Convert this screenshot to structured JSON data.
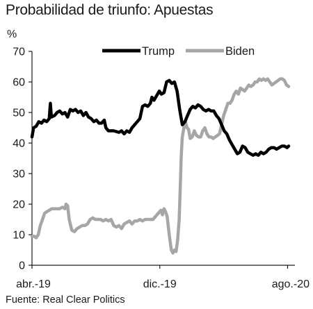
{
  "chart_data": {
    "type": "line",
    "title": "Probabilidad de triunfo: Apuestas",
    "ylabel": "%",
    "source": "Fuente: Real Clear Politics",
    "x_range": [
      "2019-04-01",
      "2020-08-15"
    ],
    "x_ticks": [
      {
        "date": "2019-04-01",
        "label": "abr.-19"
      },
      {
        "date": "2019-12-01",
        "label": "dic.-19"
      },
      {
        "date": "2020-08-01",
        "label": "ago.-20"
      }
    ],
    "ylim": [
      0,
      70
    ],
    "yticks": [
      0,
      10,
      20,
      30,
      40,
      50,
      60,
      70
    ],
    "grid": false,
    "legend": "top-right",
    "series": [
      {
        "name": "Trump",
        "color": "#000000",
        "points": [
          [
            "2019-04-01",
            42
          ],
          [
            "2019-04-04",
            45
          ],
          [
            "2019-04-09",
            45.5
          ],
          [
            "2019-04-14",
            47
          ],
          [
            "2019-04-19",
            46.5
          ],
          [
            "2019-04-24",
            47.5
          ],
          [
            "2019-04-29",
            47
          ],
          [
            "2019-05-04",
            48
          ],
          [
            "2019-05-06",
            53
          ],
          [
            "2019-05-08",
            48.5
          ],
          [
            "2019-05-14",
            49
          ],
          [
            "2019-05-19",
            50
          ],
          [
            "2019-05-24",
            50.5
          ],
          [
            "2019-05-29",
            49.5
          ],
          [
            "2019-06-03",
            50
          ],
          [
            "2019-06-08",
            48.5
          ],
          [
            "2019-06-13",
            51
          ],
          [
            "2019-06-18",
            50.5
          ],
          [
            "2019-06-23",
            51
          ],
          [
            "2019-06-28",
            50
          ],
          [
            "2019-07-03",
            50.5
          ],
          [
            "2019-07-08",
            49
          ],
          [
            "2019-07-13",
            50
          ],
          [
            "2019-07-18",
            48.5
          ],
          [
            "2019-07-23",
            48
          ],
          [
            "2019-07-28",
            47
          ],
          [
            "2019-08-02",
            47.5
          ],
          [
            "2019-08-07",
            46.5
          ],
          [
            "2019-08-12",
            46.5
          ],
          [
            "2019-08-17",
            47.5
          ],
          [
            "2019-08-20",
            45
          ],
          [
            "2019-08-25",
            44
          ],
          [
            "2019-09-04",
            44
          ],
          [
            "2019-09-14",
            43.5
          ],
          [
            "2019-09-19",
            44
          ],
          [
            "2019-09-24",
            43
          ],
          [
            "2019-09-29",
            44
          ],
          [
            "2019-10-04",
            43.5
          ],
          [
            "2019-10-09",
            45
          ],
          [
            "2019-10-14",
            46
          ],
          [
            "2019-10-19",
            47
          ],
          [
            "2019-10-24",
            48
          ],
          [
            "2019-10-29",
            52
          ],
          [
            "2019-11-03",
            52.5
          ],
          [
            "2019-11-08",
            52
          ],
          [
            "2019-11-13",
            53
          ],
          [
            "2019-11-16",
            55
          ],
          [
            "2019-11-20",
            54
          ],
          [
            "2019-11-25",
            55.5
          ],
          [
            "2019-11-30",
            57
          ],
          [
            "2019-12-04",
            56
          ],
          [
            "2019-12-09",
            56.5
          ],
          [
            "2019-12-14",
            60
          ],
          [
            "2019-12-19",
            60.5
          ],
          [
            "2019-12-24",
            59.5
          ],
          [
            "2019-12-29",
            60
          ],
          [
            "2020-01-03",
            57
          ],
          [
            "2020-01-08",
            51
          ],
          [
            "2020-01-13",
            46
          ],
          [
            "2020-01-18",
            47
          ],
          [
            "2020-01-23",
            49
          ],
          [
            "2020-01-28",
            51
          ],
          [
            "2020-02-02",
            52
          ],
          [
            "2020-02-07",
            51.5
          ],
          [
            "2020-02-12",
            52.5
          ],
          [
            "2020-02-17",
            52
          ],
          [
            "2020-02-22",
            51
          ],
          [
            "2020-02-27",
            50.5
          ],
          [
            "2020-03-03",
            51
          ],
          [
            "2020-03-08",
            50.5
          ],
          [
            "2020-03-13",
            50.5
          ],
          [
            "2020-03-18",
            49
          ],
          [
            "2020-03-23",
            48
          ],
          [
            "2020-03-28",
            46
          ],
          [
            "2020-04-02",
            44
          ],
          [
            "2020-04-07",
            43
          ],
          [
            "2020-04-12",
            41
          ],
          [
            "2020-04-17",
            39.5
          ],
          [
            "2020-04-22",
            38
          ],
          [
            "2020-04-27",
            36.5
          ],
          [
            "2020-05-02",
            37
          ],
          [
            "2020-05-07",
            39
          ],
          [
            "2020-05-12",
            38.5
          ],
          [
            "2020-05-17",
            37
          ],
          [
            "2020-05-22",
            36.5
          ],
          [
            "2020-05-27",
            36
          ],
          [
            "2020-06-01",
            36.5
          ],
          [
            "2020-06-06",
            36
          ],
          [
            "2020-06-11",
            37
          ],
          [
            "2020-06-16",
            36.5
          ],
          [
            "2020-06-21",
            37
          ],
          [
            "2020-06-26",
            38
          ],
          [
            "2020-07-01",
            38.5
          ],
          [
            "2020-07-06",
            38.5
          ],
          [
            "2020-07-11",
            38
          ],
          [
            "2020-07-16",
            38.5
          ],
          [
            "2020-07-21",
            39
          ],
          [
            "2020-07-26",
            39
          ],
          [
            "2020-07-31",
            38.5
          ],
          [
            "2020-08-03",
            39
          ]
        ]
      },
      {
        "name": "Biden",
        "color": "#a6a6a6",
        "points": [
          [
            "2019-04-01",
            9.5
          ],
          [
            "2019-04-05",
            9.5
          ],
          [
            "2019-04-09",
            9
          ],
          [
            "2019-04-13",
            10
          ],
          [
            "2019-04-17",
            13
          ],
          [
            "2019-04-21",
            15
          ],
          [
            "2019-04-25",
            17
          ],
          [
            "2019-04-29",
            17.5
          ],
          [
            "2019-05-04",
            18
          ],
          [
            "2019-05-09",
            18.5
          ],
          [
            "2019-05-14",
            18.5
          ],
          [
            "2019-05-19",
            18.5
          ],
          [
            "2019-05-24",
            18.5
          ],
          [
            "2019-05-29",
            19
          ],
          [
            "2019-06-03",
            18.5
          ],
          [
            "2019-06-05",
            20
          ],
          [
            "2019-06-08",
            19.5
          ],
          [
            "2019-06-11",
            15
          ],
          [
            "2019-06-16",
            11.5
          ],
          [
            "2019-06-21",
            11
          ],
          [
            "2019-06-26",
            12
          ],
          [
            "2019-07-01",
            12.5
          ],
          [
            "2019-07-06",
            13
          ],
          [
            "2019-07-11",
            13
          ],
          [
            "2019-07-16",
            13.5
          ],
          [
            "2019-07-21",
            15
          ],
          [
            "2019-07-26",
            15.5
          ],
          [
            "2019-07-31",
            15
          ],
          [
            "2019-08-05",
            15
          ],
          [
            "2019-08-10",
            15
          ],
          [
            "2019-08-15",
            14.5
          ],
          [
            "2019-08-20",
            15
          ],
          [
            "2019-08-25",
            14.5
          ],
          [
            "2019-08-30",
            15
          ],
          [
            "2019-09-04",
            13
          ],
          [
            "2019-09-09",
            12.5
          ],
          [
            "2019-09-14",
            13
          ],
          [
            "2019-09-19",
            12
          ],
          [
            "2019-09-24",
            13.5
          ],
          [
            "2019-09-29",
            14
          ],
          [
            "2019-10-04",
            14.5
          ],
          [
            "2019-10-09",
            13.5
          ],
          [
            "2019-10-14",
            14.5
          ],
          [
            "2019-10-19",
            14.5
          ],
          [
            "2019-10-24",
            15
          ],
          [
            "2019-10-29",
            14.5
          ],
          [
            "2019-11-03",
            15
          ],
          [
            "2019-11-08",
            15
          ],
          [
            "2019-11-13",
            15
          ],
          [
            "2019-11-18",
            15
          ],
          [
            "2019-11-23",
            16
          ],
          [
            "2019-11-28",
            17
          ],
          [
            "2019-12-03",
            18
          ],
          [
            "2019-12-06",
            16.5
          ],
          [
            "2019-12-09",
            18.5
          ],
          [
            "2019-12-12",
            17.5
          ],
          [
            "2019-12-15",
            16
          ],
          [
            "2019-12-19",
            10
          ],
          [
            "2019-12-23",
            5
          ],
          [
            "2019-12-26",
            4
          ],
          [
            "2019-12-29",
            5
          ],
          [
            "2020-01-01",
            4.5
          ],
          [
            "2020-01-04",
            8
          ],
          [
            "2020-01-07",
            15
          ],
          [
            "2020-01-09",
            25
          ],
          [
            "2020-01-11",
            36
          ],
          [
            "2020-01-13",
            42
          ],
          [
            "2020-01-16",
            45
          ],
          [
            "2020-01-19",
            47
          ],
          [
            "2020-01-22",
            45
          ],
          [
            "2020-01-25",
            44.5
          ],
          [
            "2020-01-28",
            41.5
          ],
          [
            "2020-02-01",
            42
          ],
          [
            "2020-02-05",
            44
          ],
          [
            "2020-02-09",
            42.5
          ],
          [
            "2020-02-13",
            42
          ],
          [
            "2020-02-17",
            42
          ],
          [
            "2020-02-21",
            44
          ],
          [
            "2020-02-25",
            45
          ],
          [
            "2020-02-29",
            43
          ],
          [
            "2020-03-04",
            42
          ],
          [
            "2020-03-08",
            42
          ],
          [
            "2020-03-12",
            41.5
          ],
          [
            "2020-03-16",
            42
          ],
          [
            "2020-03-20",
            42.5
          ],
          [
            "2020-03-24",
            43
          ],
          [
            "2020-03-28",
            46
          ],
          [
            "2020-04-01",
            49
          ],
          [
            "2020-04-05",
            51
          ],
          [
            "2020-04-09",
            53
          ],
          [
            "2020-04-13",
            53
          ],
          [
            "2020-04-17",
            54
          ],
          [
            "2020-04-21",
            56
          ],
          [
            "2020-04-25",
            57
          ],
          [
            "2020-04-29",
            56
          ],
          [
            "2020-05-03",
            58
          ],
          [
            "2020-05-07",
            57.5
          ],
          [
            "2020-05-11",
            57
          ],
          [
            "2020-05-15",
            58
          ],
          [
            "2020-05-19",
            59
          ],
          [
            "2020-05-23",
            58.5
          ],
          [
            "2020-05-27",
            59
          ],
          [
            "2020-05-31",
            60
          ],
          [
            "2020-06-04",
            60
          ],
          [
            "2020-06-08",
            61
          ],
          [
            "2020-06-12",
            60.5
          ],
          [
            "2020-06-16",
            61
          ],
          [
            "2020-06-20",
            60.5
          ],
          [
            "2020-06-24",
            61
          ],
          [
            "2020-06-28",
            60
          ],
          [
            "2020-07-02",
            59
          ],
          [
            "2020-07-06",
            59.5
          ],
          [
            "2020-07-10",
            60
          ],
          [
            "2020-07-14",
            60.5
          ],
          [
            "2020-07-18",
            61
          ],
          [
            "2020-07-22",
            61
          ],
          [
            "2020-07-26",
            60.5
          ],
          [
            "2020-07-30",
            59
          ],
          [
            "2020-08-03",
            58.5
          ]
        ]
      }
    ]
  }
}
